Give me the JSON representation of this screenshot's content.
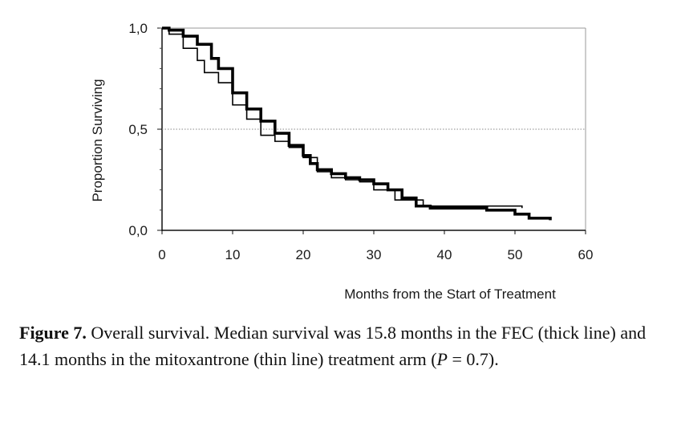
{
  "chart_data": {
    "type": "line",
    "xlabel": "Months from the Start of Treatment",
    "ylabel": "Proportion Surviving",
    "xlim": [
      0,
      60
    ],
    "ylim": [
      0,
      1
    ],
    "xticks": [
      "0",
      "10",
      "20",
      "30",
      "40",
      "50",
      "60"
    ],
    "yticks": [
      "0,0",
      "0,5",
      "1,0"
    ],
    "reference_line_y": 0.5,
    "series": [
      {
        "style": "thick",
        "x": [
          0,
          1,
          3,
          5,
          7,
          8,
          10,
          12,
          14,
          16,
          18,
          20,
          21,
          22,
          24,
          26,
          28,
          30,
          32,
          34,
          36,
          38,
          40,
          43,
          46,
          50,
          52,
          55
        ],
        "y": [
          1.0,
          0.99,
          0.96,
          0.92,
          0.85,
          0.8,
          0.68,
          0.6,
          0.54,
          0.48,
          0.42,
          0.37,
          0.33,
          0.3,
          0.28,
          0.26,
          0.25,
          0.23,
          0.2,
          0.16,
          0.12,
          0.11,
          0.11,
          0.11,
          0.1,
          0.08,
          0.06,
          0.05
        ]
      },
      {
        "style": "thin",
        "x": [
          0,
          1,
          3,
          5,
          6,
          8,
          10,
          12,
          14,
          16,
          18,
          20,
          22,
          24,
          26,
          28,
          30,
          33,
          37,
          40,
          45,
          51
        ],
        "y": [
          1.0,
          0.97,
          0.9,
          0.84,
          0.78,
          0.73,
          0.62,
          0.55,
          0.47,
          0.44,
          0.41,
          0.36,
          0.29,
          0.26,
          0.25,
          0.24,
          0.2,
          0.15,
          0.12,
          0.12,
          0.12,
          0.11
        ]
      }
    ]
  },
  "caption": {
    "label": "Figure 7.",
    "text": " Overall survival. Median survival was 15.8 months in the FEC (thick line) and 14.1 months in the mitoxantrone (thin line) treatment arm (",
    "p_symbol": "P",
    "p_rest": " = 0.7)."
  }
}
